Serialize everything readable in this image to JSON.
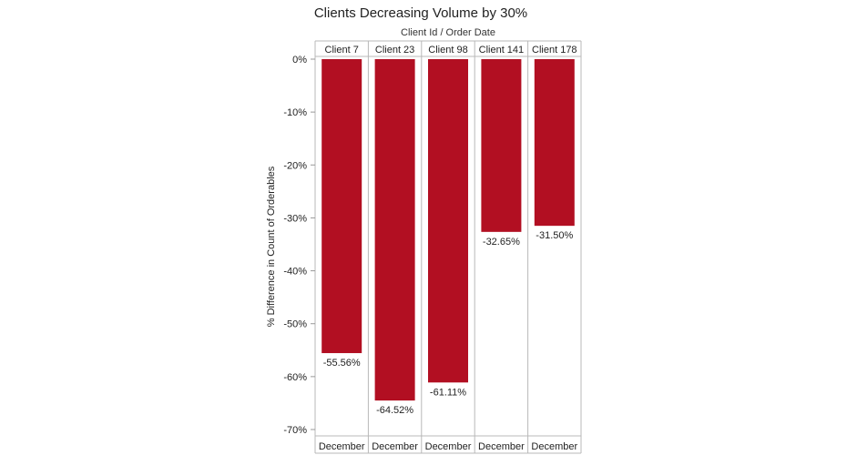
{
  "chart_data": {
    "type": "bar",
    "title": "Clients Decreasing Volume by 30%",
    "subtitle": "Client Id  /  Order Date",
    "ylabel": "% Difference in Count of Orderables",
    "categories": [
      "Client 7",
      "Client 23",
      "Client 98",
      "Client 141",
      "Client 178"
    ],
    "sub_categories": [
      "December",
      "December",
      "December",
      "December",
      "December"
    ],
    "values": [
      -55.56,
      -64.52,
      -61.11,
      -32.65,
      -31.5
    ],
    "value_labels": [
      "-55.56%",
      "-64.52%",
      "-61.11%",
      "-32.65%",
      "-31.50%"
    ],
    "ylim": [
      -70,
      0
    ],
    "yticks": [
      0,
      -10,
      -20,
      -30,
      -40,
      -50,
      -60,
      -70
    ],
    "ytick_labels": [
      "0%",
      "-10%",
      "-20%",
      "-30%",
      "-40%",
      "-50%",
      "-60%",
      "-70%"
    ],
    "bar_color": "#b20f22",
    "grid": false,
    "legend": "none"
  }
}
